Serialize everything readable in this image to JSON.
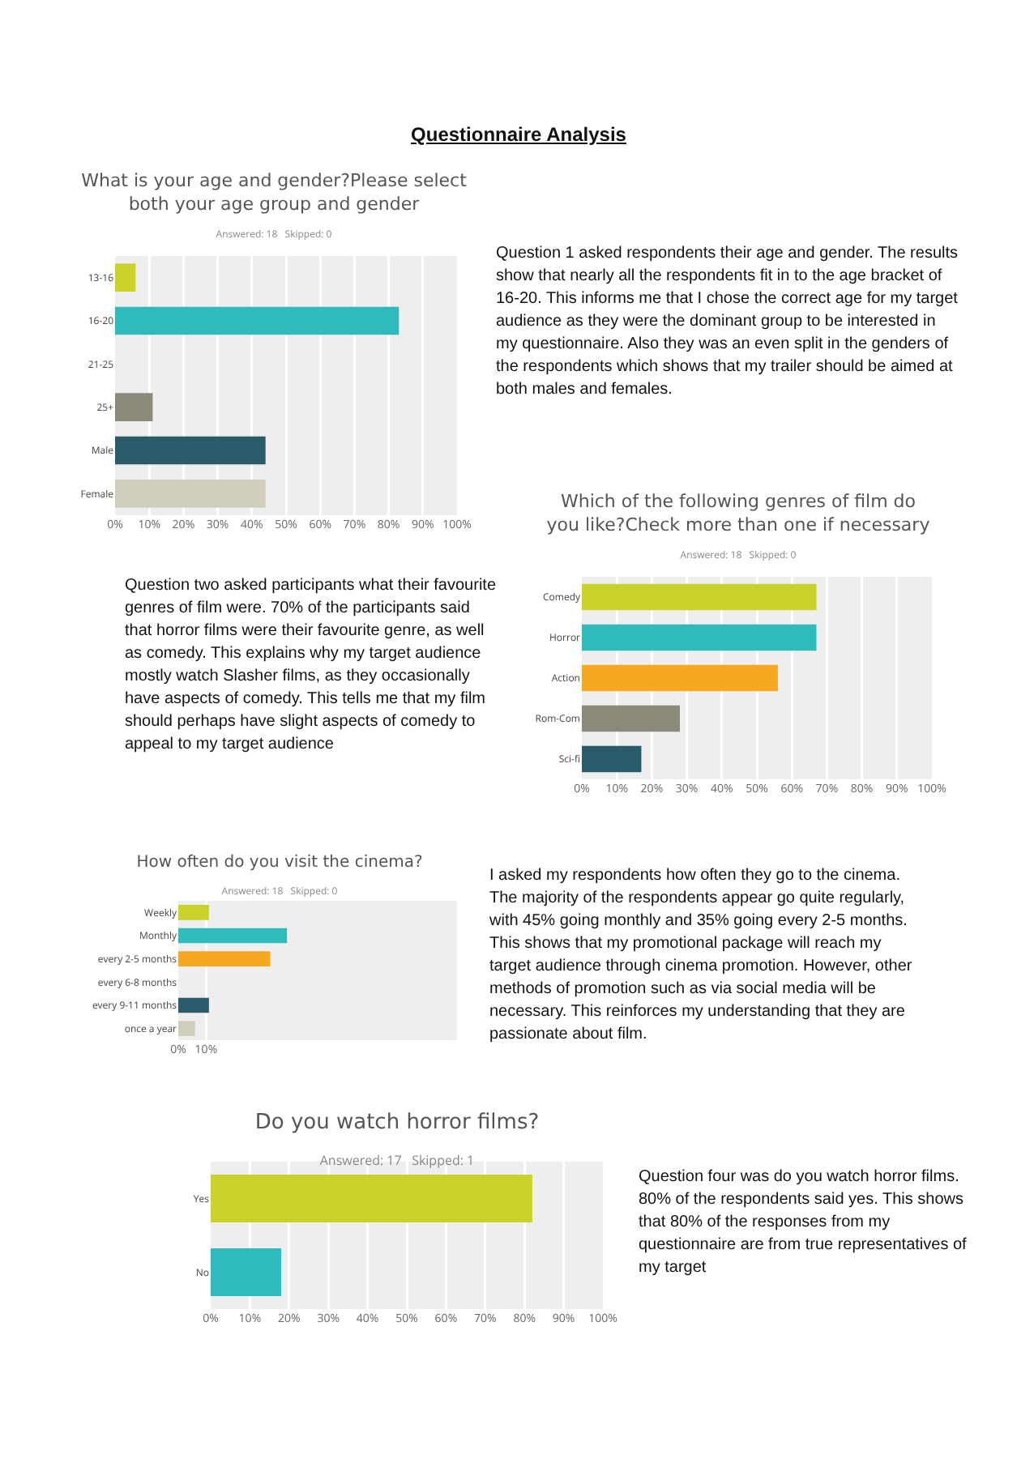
{
  "chart_data": [
    {
      "type": "bar",
      "orientation": "horizontal",
      "title": "What is your age and gender?Please select both your age group and gender",
      "subtitle": "Answered: 18   Skipped: 0",
      "categories": [
        "13-16",
        "16-20",
        "21-25",
        "25+",
        "Male",
        "Female"
      ],
      "values": [
        6,
        83,
        0,
        11,
        44,
        44
      ],
      "colors": [
        "#c9d22b",
        "#2fbabc",
        "#2fbabc",
        "#8b8a78",
        "#2b5a6b",
        "#d0cebb"
      ],
      "xlim": [
        0,
        100
      ],
      "xticks": [
        {
          "value": 0,
          "label": "0%"
        },
        {
          "value": 10,
          "label": "10%"
        },
        {
          "value": 20,
          "label": "20%"
        },
        {
          "value": 30,
          "label": "30%"
        },
        {
          "value": 40,
          "label": "40%"
        },
        {
          "value": 50,
          "label": "50%"
        },
        {
          "value": 60,
          "label": "60%"
        },
        {
          "value": 70,
          "label": "70%"
        },
        {
          "value": 80,
          "label": "80%"
        },
        {
          "value": 90,
          "label": "90%"
        },
        {
          "value": 100,
          "label": "100%"
        }
      ],
      "grid": "x",
      "annotations": [
        "Questionnaire Analysis",
        "Question 1 asked respondents their age and gender. The results show that nearly all the respondents fit in to the age bracket of 16-20. This informs me that I chose the correct age for my target audience as they were the dominant group to be interested in my questionnaire. Also they was an even split in the genders of the respondents which shows that my trailer should be aimed at both males and females."
      ]
    },
    {
      "type": "bar",
      "orientation": "horizontal",
      "title": "Which of the following genres of film do you like?Check more than one if necessary",
      "subtitle": "Answered: 18   Skipped: 0",
      "categories": [
        "Comedy",
        "Horror",
        "Action",
        "Rom-Com",
        "Sci-fi"
      ],
      "values": [
        67,
        67,
        56,
        28,
        17
      ],
      "colors": [
        "#c9d22b",
        "#2fbabc",
        "#f7a823",
        "#8b8a78",
        "#2b5a6b"
      ],
      "xlim": [
        0,
        100
      ],
      "xticks": [
        {
          "value": 0,
          "label": "0%"
        },
        {
          "value": 10,
          "label": "10%"
        },
        {
          "value": 20,
          "label": "20%"
        },
        {
          "value": 30,
          "label": "30%"
        },
        {
          "value": 40,
          "label": "40%"
        },
        {
          "value": 50,
          "label": "50%"
        },
        {
          "value": 60,
          "label": "60%"
        },
        {
          "value": 70,
          "label": "70%"
        },
        {
          "value": 80,
          "label": "80%"
        },
        {
          "value": 90,
          "label": "90%"
        },
        {
          "value": 100,
          "label": "100%"
        }
      ],
      "grid": "x",
      "annotations": [
        "Question two asked participants what their favourite genres of film were. 70% of the participants said that horror films were their favourite genre, as well as comedy. This explains why my target audience mostly watch Slasher films, as they occasionally have aspects of comedy. This tells me that my film should perhaps have slight aspects of comedy to appeal to my target audience"
      ]
    },
    {
      "type": "bar",
      "orientation": "horizontal",
      "title": "How often do you visit the cinema?",
      "subtitle": "Answered: 18   Skipped: 0",
      "categories": [
        "Weekly",
        "Monthly",
        "every 2-5 months",
        "every 6-8 months",
        "every 9-11 months",
        "once a year"
      ],
      "values": [
        11,
        39,
        33,
        0,
        11,
        6
      ],
      "colors": [
        "#c9d22b",
        "#2fbabc",
        "#f7a823",
        "#8b8a78",
        "#2b5a6b",
        "#d0cebb"
      ],
      "xlim": [
        0,
        100
      ],
      "xticks": [
        {
          "value": 0,
          "label": "0%"
        },
        {
          "value": 10,
          "label": "10%"
        }
      ],
      "grid": "x",
      "annotations": [
        "I asked my respondents how often they go to the cinema. The majority of the respondents appear go quite regularly, with 45% going monthly and 35% going every 2-5 months. This shows that my promotional package will reach my target audience through cinema promotion. However, other methods of promotion such as via social media will be necessary. This reinforces my understanding that they are passionate about film."
      ]
    },
    {
      "type": "bar",
      "orientation": "horizontal",
      "title": "Do you watch horror films?",
      "subtitle": "Answered: 17   Skipped: 1",
      "categories": [
        "Yes",
        "No"
      ],
      "values": [
        82,
        18
      ],
      "colors": [
        "#c9d22b",
        "#2fbabc"
      ],
      "xlim": [
        0,
        100
      ],
      "xticks": [
        {
          "value": 0,
          "label": "0%"
        },
        {
          "value": 10,
          "label": "10%"
        },
        {
          "value": 20,
          "label": "20%"
        },
        {
          "value": 30,
          "label": "30%"
        },
        {
          "value": 40,
          "label": "40%"
        },
        {
          "value": 50,
          "label": "50%"
        },
        {
          "value": 60,
          "label": "60%"
        },
        {
          "value": 70,
          "label": "70%"
        },
        {
          "value": 80,
          "label": "80%"
        },
        {
          "value": 90,
          "label": "90%"
        },
        {
          "value": 100,
          "label": "100%"
        }
      ],
      "grid": "x",
      "annotations": [
        "Question four was do you watch horror films. 80% of the respondents said yes. This shows that 80% of the responses from my questionnaire are from true representatives of my target"
      ]
    }
  ]
}
